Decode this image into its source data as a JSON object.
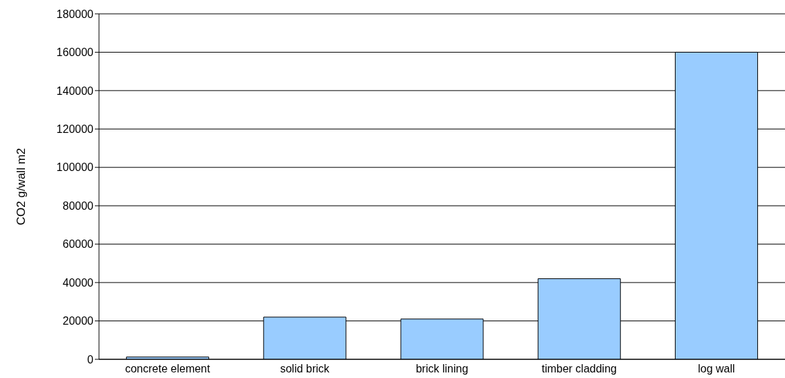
{
  "chart_data": {
    "type": "bar",
    "ylabel": "CO2 g/wall m2",
    "categories": [
      "concrete element",
      "solid brick",
      "brick lining",
      "timber cladding",
      "log wall"
    ],
    "values": [
      1200,
      22000,
      21000,
      42000,
      160000
    ],
    "color": "#99ccff",
    "ylim": [
      0,
      180000
    ],
    "yticks": [
      0,
      20000,
      40000,
      60000,
      80000,
      100000,
      120000,
      140000,
      160000,
      180000
    ],
    "grid": "y"
  }
}
